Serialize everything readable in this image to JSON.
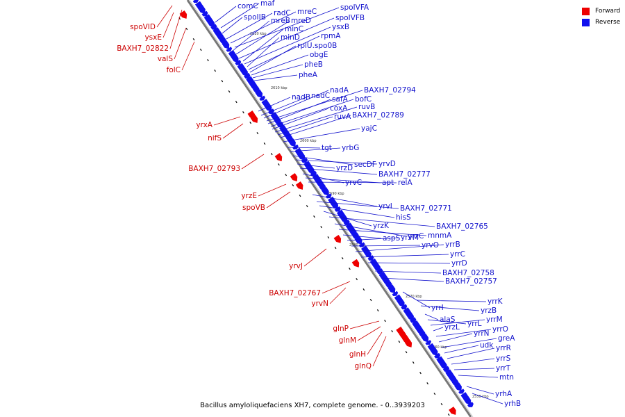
{
  "legend": {
    "forward": {
      "label": "Forward",
      "color": "#ee0000"
    },
    "reverse": {
      "label": "Reverse",
      "color": "#1010ee"
    }
  },
  "caption": "Bacillus amyloliquefaciens XH7, complete genome. - 0..3939203",
  "colors": {
    "forward_label": "#cc0000",
    "reverse_label": "#1010cc",
    "backbone": "#777777",
    "tick": "#000000"
  },
  "ticks": [
    "2620 kbp",
    "2610 kbp",
    "2600 kbp",
    "2590 kbp",
    "2580 kbp",
    "2570 kbp",
    "2560 kbp",
    "2550 kbp"
  ],
  "forward_genes": [
    "spoVID",
    "ysxE",
    "BAXH7_02822",
    "valS",
    "folC",
    "yrxA",
    "nifS",
    "BAXH7_02793",
    "yrzE",
    "spoVB",
    "yrvJ",
    "BAXH7_02767",
    "yrvN",
    "glnP",
    "glnM",
    "glnH",
    "glnQ"
  ],
  "reverse_genes": [
    "comC",
    "maf",
    "spoIIB",
    "radC",
    "mreC",
    "spoIVFA",
    "mreB",
    "mreD",
    "spoIVFB",
    "minC",
    "ysxB",
    "minD",
    "rpmA",
    "rplU.spo0B",
    "obgE",
    "pheB",
    "pheA",
    "nadB",
    "nadC",
    "nadA",
    "BAXH7_02794",
    "safA",
    "bofC",
    "coxA",
    "ruvB",
    "ruvA",
    "BAXH7_02789",
    "yajC",
    "tgt",
    "yrbG",
    "secDF",
    "yrvD",
    "yrzD",
    "BAXH7_02777",
    "yrvC",
    "apt",
    "relA",
    "yrvI",
    "BAXH7_02771",
    "hisS",
    "yrzK",
    "BAXH7_02765",
    "yrzC",
    "mnmA",
    "aspS",
    "yrvM",
    "yrvO",
    "yrrB",
    "yrrC",
    "yrrD",
    "BAXH7_02758",
    "BAXH7_02757",
    "yrrI",
    "yrrK",
    "yrzB",
    "alaS",
    "yrrL",
    "yrrM",
    "yrzL",
    "yrrO",
    "yrrN",
    "greA",
    "udk",
    "yrrR",
    "yrrS",
    "yrrT",
    "mtn",
    "yrhA",
    "yrhB"
  ]
}
